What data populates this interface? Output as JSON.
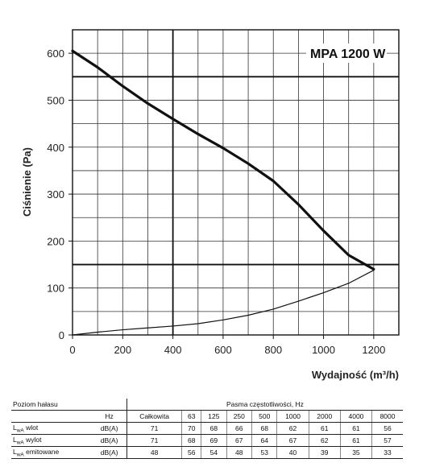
{
  "chart_data": {
    "type": "line",
    "xlabel": "Wydajność (m³/h)",
    "ylabel": "Ciśnienie (Pa)",
    "xlim": [
      0,
      1300
    ],
    "ylim": [
      0,
      650
    ],
    "xticks": [
      "0",
      "200",
      "400",
      "600",
      "800",
      "1000",
      "1200"
    ],
    "yticks": [
      "0",
      "100",
      "200",
      "300",
      "400",
      "500",
      "600"
    ],
    "x_tick_values": [
      0,
      200,
      400,
      600,
      800,
      1000,
      1200
    ],
    "y_tick_values": [
      0,
      100,
      200,
      300,
      400,
      500,
      600
    ],
    "grid": true,
    "annotations": [
      "MPA 1200 W"
    ],
    "series": [
      {
        "points": [
          [
            0,
            605
          ],
          [
            100,
            570
          ],
          [
            200,
            530
          ],
          [
            300,
            493
          ],
          [
            400,
            460
          ],
          [
            500,
            428
          ],
          [
            600,
            398
          ],
          [
            700,
            365
          ],
          [
            800,
            328
          ],
          [
            900,
            278
          ],
          [
            1000,
            222
          ],
          [
            1100,
            170
          ],
          [
            1200,
            140
          ]
        ]
      },
      {
        "points": [
          [
            0,
            0
          ],
          [
            100,
            6
          ],
          [
            200,
            11
          ],
          [
            300,
            15
          ],
          [
            400,
            19
          ],
          [
            500,
            24
          ],
          [
            600,
            32
          ],
          [
            700,
            42
          ],
          [
            800,
            55
          ],
          [
            900,
            72
          ],
          [
            1000,
            90
          ],
          [
            1100,
            110
          ],
          [
            1200,
            138
          ]
        ]
      }
    ]
  },
  "table": {
    "title": "Poziom hałasu",
    "band_title": "Pasma częstotliwości, Hz",
    "hz_label": "Hz",
    "columns": [
      "Całkowita",
      "63",
      "125",
      "250",
      "500",
      "1000",
      "2000",
      "4000",
      "8000"
    ],
    "rows": [
      {
        "name": "L",
        "sub": "wA",
        "name_rest": " wlot",
        "unit": "dB(A)",
        "values": [
          "71",
          "70",
          "68",
          "66",
          "68",
          "62",
          "61",
          "61",
          "56"
        ]
      },
      {
        "name": "L",
        "sub": "wA",
        "name_rest": " wylot",
        "unit": "dB(A)",
        "values": [
          "71",
          "68",
          "69",
          "67",
          "64",
          "67",
          "62",
          "61",
          "57"
        ]
      },
      {
        "name": "L",
        "sub": "wA",
        "name_rest": " emitowane",
        "unit": "dB(A)",
        "values": [
          "48",
          "56",
          "54",
          "48",
          "53",
          "40",
          "39",
          "35",
          "33"
        ]
      }
    ]
  }
}
